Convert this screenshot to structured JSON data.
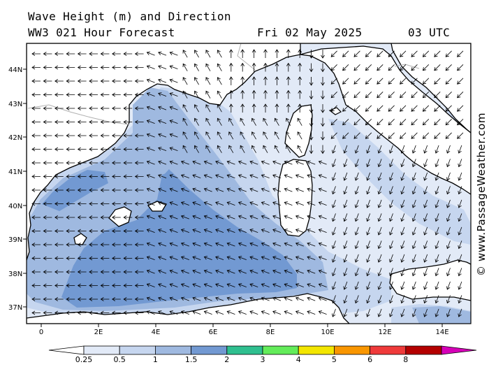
{
  "header": {
    "title": "Wave Height (m) and Direction",
    "model": "WW3 021 Hour Forecast",
    "date": "Fri 02 May 2025",
    "time": "03 UTC"
  },
  "credit": "© www.PassageWeather.com",
  "lat_labels": [
    "44N",
    "43N",
    "42N",
    "41N",
    "40N",
    "39N",
    "38N",
    "37N"
  ],
  "lon_labels": [
    "0",
    "2E",
    "4E",
    "6E",
    "8E",
    "10E",
    "12E",
    "14E"
  ],
  "legend": {
    "labels": [
      "0.25",
      "0.5",
      "1",
      "1.5",
      "2",
      "3",
      "4",
      "5",
      "6",
      "8"
    ],
    "colors": [
      "#e2eaf7",
      "#c6d6ef",
      "#9fb9e0",
      "#7299d2",
      "#2fbf8f",
      "#63ec5a",
      "#f3e600",
      "#f99600",
      "#ef3a3a",
      "#b40000",
      "#d600b8"
    ]
  },
  "colors": {
    "sea_lightest": "#e2eaf7",
    "sea_light": "#c6d6ef",
    "sea_mid": "#9fb9e0",
    "sea_dark": "#7299d2",
    "land": "#ffffff",
    "coast": "#000000",
    "border": "#b0b0b0"
  }
}
